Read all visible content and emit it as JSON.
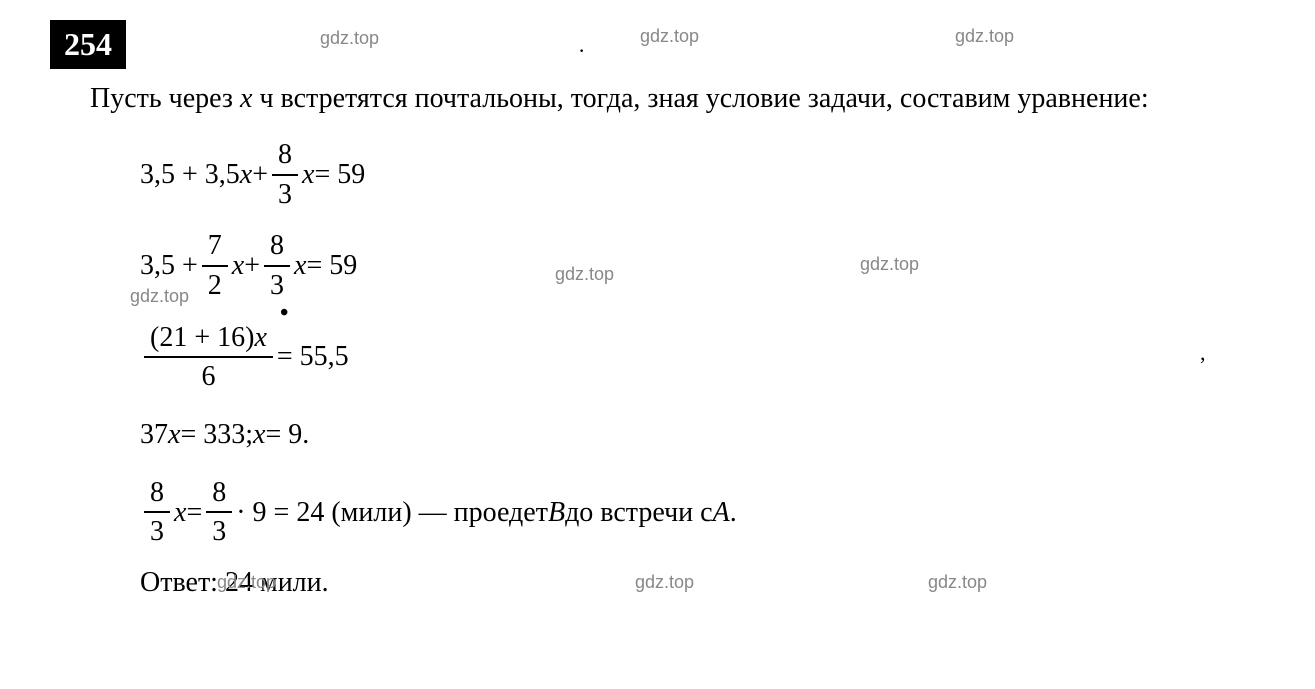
{
  "problem_number": "254",
  "problem_text_part1": "Пусть через ",
  "problem_var": "x",
  "problem_text_part2": " ч встретятся  почтальоны, тогда, зная условие задачи, составим уравнение:",
  "formulas": {
    "line1_a": "3,5 + 3,5",
    "line1_var": "x",
    "line1_plus": " + ",
    "line1_frac_num": "8",
    "line1_frac_den": "3",
    "line1_var2": "x",
    "line1_eq": " = 59",
    "line2_a": "3,5 + ",
    "line2_frac1_num": "7",
    "line2_frac1_den": "2",
    "line2_var1": "x",
    "line2_plus": " + ",
    "line2_frac2_num": "8",
    "line2_frac2_den": "3",
    "line2_var2": "x",
    "line2_eq": " = 59",
    "line3_frac_num": "(21 + 16)",
    "line3_frac_var": "x",
    "line3_frac_den": "6",
    "line3_eq": " = 55,5",
    "line4_a": "37",
    "line4_var1": "x",
    "line4_eq1": " = 333; ",
    "line4_var2": "x",
    "line4_eq2": " = 9.",
    "line5_frac1_num": "8",
    "line5_frac1_den": "3",
    "line5_var": "x",
    "line5_eq": " = ",
    "line5_frac2_num": "8",
    "line5_frac2_den": "3",
    "line5_mul": " · 9 = 24  (мили) — проедет ",
    "line5_B": "B",
    "line5_text": " до встречи с ",
    "line5_A": "A",
    "line5_dot": "."
  },
  "answer_label": "Ответ: ",
  "answer_value": "24 мили.",
  "watermark": "gdz.top",
  "colors": {
    "bg": "#ffffff",
    "text": "#000000",
    "watermark": "#888888"
  },
  "fontsize_main": 28,
  "fontsize_number": 32
}
